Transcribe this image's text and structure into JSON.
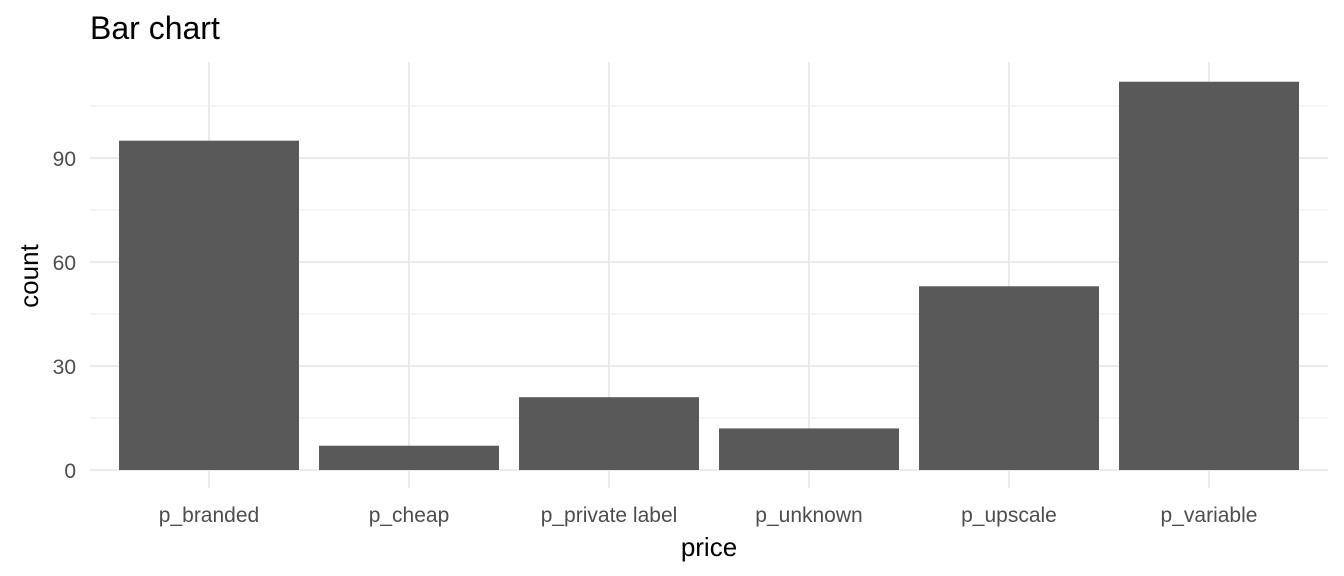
{
  "chart_data": {
    "type": "bar",
    "title": "Bar chart",
    "xlabel": "price",
    "ylabel": "count",
    "categories": [
      "p_branded",
      "p_cheap",
      "p_private label",
      "p_unknown",
      "p_upscale",
      "p_variable"
    ],
    "values": [
      95,
      7,
      21,
      12,
      53,
      112
    ],
    "ylim": [
      0,
      118
    ],
    "yticks": [
      0,
      30,
      60,
      90
    ],
    "grid": true,
    "legend": "none",
    "bar_color": "#595959",
    "grid_color": "#ebebeb",
    "tick_label_color": "#4d4d4d"
  }
}
